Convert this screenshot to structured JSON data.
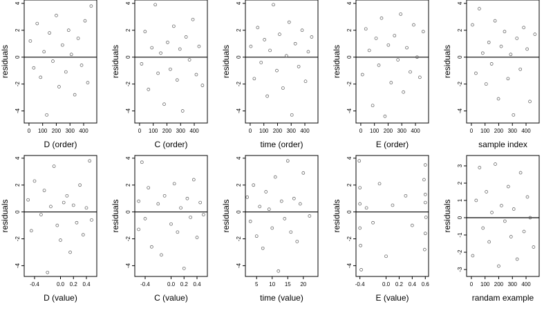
{
  "chart_data": [
    {
      "type": "scatter",
      "x_label": "D (order)",
      "y_label": "residuals",
      "color": "#555555",
      "reference_line": 0,
      "xlim": [
        -35,
        496
      ],
      "ylim": [
        -4.9,
        4.25
      ],
      "xticks": [
        0,
        100,
        200,
        300,
        400
      ],
      "yticks": [
        -4,
        -2,
        0,
        2,
        4
      ],
      "x": [
        10,
        35,
        60,
        85,
        110,
        130,
        150,
        175,
        200,
        220,
        245,
        270,
        290,
        310,
        335,
        360,
        385,
        410,
        430,
        455
      ],
      "y": [
        1.2,
        -0.8,
        2.5,
        -1.5,
        0.4,
        -4.3,
        1.8,
        -0.3,
        3.1,
        -2.2,
        0.9,
        -1.1,
        2.0,
        0.2,
        -2.8,
        1.4,
        -0.6,
        2.7,
        -1.9,
        3.8
      ]
    },
    {
      "type": "scatter",
      "x_label": "C (order)",
      "y_label": "residuals",
      "color": "#555555",
      "reference_line": 0,
      "xlim": [
        -35,
        496
      ],
      "ylim": [
        -4.9,
        4.25
      ],
      "xticks": [
        0,
        100,
        200,
        300,
        400
      ],
      "yticks": [
        -4,
        -2,
        0,
        2,
        4
      ],
      "x": [
        15,
        40,
        65,
        90,
        115,
        135,
        155,
        180,
        205,
        225,
        250,
        275,
        295,
        315,
        340,
        365,
        390,
        415,
        435,
        460
      ],
      "y": [
        -0.5,
        1.9,
        -2.4,
        0.7,
        3.9,
        -1.2,
        0.3,
        -3.5,
        1.1,
        -0.9,
        2.3,
        -1.7,
        0.6,
        -4.0,
        1.5,
        -0.2,
        2.8,
        -1.3,
        0.8,
        -2.1
      ]
    },
    {
      "type": "scatter",
      "x_label": "time (order)",
      "y_label": "residuals",
      "color": "#555555",
      "reference_line": 0,
      "xlim": [
        -35,
        496
      ],
      "ylim": [
        -4.9,
        4.25
      ],
      "xticks": [
        0,
        100,
        200,
        300,
        400
      ],
      "yticks": [
        -4,
        -2,
        0,
        2,
        4
      ],
      "x": [
        5,
        30,
        55,
        80,
        105,
        125,
        145,
        170,
        195,
        215,
        240,
        265,
        285,
        305,
        330,
        355,
        380,
        405,
        425,
        450
      ],
      "y": [
        0.8,
        -1.6,
        2.2,
        -0.4,
        1.3,
        -2.9,
        0.5,
        3.9,
        -1.0,
        1.7,
        -2.3,
        0.1,
        2.6,
        -4.3,
        1.0,
        -0.7,
        2.0,
        -1.8,
        0.4,
        1.5
      ]
    },
    {
      "type": "scatter",
      "x_label": "E (order)",
      "y_label": "residuals",
      "color": "#555555",
      "reference_line": 0,
      "xlim": [
        -35,
        496
      ],
      "ylim": [
        -4.9,
        4.25
      ],
      "xticks": [
        0,
        100,
        200,
        300,
        400
      ],
      "yticks": [
        -4,
        -2,
        0,
        2,
        4
      ],
      "x": [
        12,
        37,
        62,
        87,
        112,
        132,
        152,
        177,
        202,
        222,
        247,
        272,
        292,
        312,
        337,
        362,
        387,
        412,
        432,
        457
      ],
      "y": [
        -1.3,
        2.1,
        0.5,
        -3.6,
        1.4,
        -0.6,
        2.9,
        -4.4,
        0.9,
        -1.9,
        1.6,
        -0.2,
        3.2,
        -2.6,
        0.7,
        -1.1,
        2.4,
        0.0,
        -1.5,
        1.9
      ]
    },
    {
      "type": "scatter",
      "x_label": "sample index",
      "y_label": "residuals",
      "color": "#555555",
      "reference_line": 0,
      "xlim": [
        -35,
        496
      ],
      "ylim": [
        -4.9,
        4.25
      ],
      "xticks": [
        0,
        100,
        200,
        300,
        400
      ],
      "yticks": [
        -4,
        -2,
        0,
        2,
        4
      ],
      "x": [
        8,
        33,
        58,
        83,
        108,
        128,
        148,
        173,
        198,
        218,
        243,
        268,
        288,
        308,
        333,
        358,
        383,
        408,
        428,
        465
      ],
      "y": [
        2.4,
        -1.2,
        3.6,
        0.3,
        -2.0,
        1.1,
        -0.5,
        2.7,
        -3.1,
        0.8,
        1.9,
        -1.6,
        0.2,
        -4.3,
        1.4,
        -0.9,
        2.2,
        0.6,
        -3.3,
        1.7
      ]
    },
    {
      "type": "scatter",
      "x_label": "D (value)",
      "y_label": "residuals",
      "color": "#555555",
      "reference_line": 0,
      "xlim": [
        -0.56,
        0.56
      ],
      "ylim": [
        -4.8,
        4.2
      ],
      "xticks": [
        -0.4,
        {
          "value": 0,
          "label": "0.0"
        },
        0.2,
        0.4
      ],
      "yticks": [
        -4,
        -2,
        0,
        2,
        4
      ],
      "x": [
        -0.5,
        -0.45,
        -0.4,
        -0.3,
        -0.25,
        -0.2,
        -0.15,
        -0.1,
        -0.05,
        0,
        0.05,
        0.1,
        0.15,
        0.2,
        0.25,
        0.3,
        0.35,
        0.4,
        0.45,
        0.48
      ],
      "y": [
        0.9,
        -1.4,
        2.3,
        -0.2,
        1.6,
        -4.5,
        0.4,
        3.4,
        -1.0,
        -2.1,
        0.7,
        1.2,
        -3.0,
        0.5,
        -0.8,
        2.0,
        -1.7,
        0.3,
        3.8,
        -0.6
      ]
    },
    {
      "type": "scatter",
      "x_label": "C (value)",
      "y_label": "residuals",
      "color": "#555555",
      "reference_line": 0,
      "xlim": [
        -0.56,
        0.56
      ],
      "ylim": [
        -4.8,
        4.2
      ],
      "xticks": [
        -0.4,
        {
          "value": 0,
          "label": "0.0"
        },
        0.2,
        0.4
      ],
      "yticks": [
        -4,
        -2,
        0,
        2,
        4
      ],
      "x": [
        -0.5,
        -0.5,
        -0.45,
        -0.4,
        -0.35,
        -0.3,
        -0.2,
        -0.15,
        -0.1,
        0,
        0.05,
        0.1,
        0.15,
        0.2,
        0.25,
        0.3,
        0.35,
        0.4,
        0.45,
        0.5
      ],
      "y": [
        0.8,
        -1.3,
        3.7,
        -0.5,
        1.8,
        -2.6,
        0.6,
        -3.2,
        1.2,
        -0.9,
        2.1,
        -1.5,
        0.3,
        -4.2,
        1.0,
        -0.4,
        2.4,
        -1.9,
        0.7,
        -0.2
      ]
    },
    {
      "type": "scatter",
      "x_label": "time (value)",
      "y_label": "residuals",
      "color": "#555555",
      "reference_line": 0,
      "xlim": [
        1.4,
        24.7
      ],
      "ylim": [
        -4.8,
        4.2
      ],
      "xticks": [
        5,
        10,
        15,
        20
      ],
      "yticks": [
        -4,
        -2,
        0,
        2,
        4
      ],
      "x": [
        2,
        3,
        4,
        5,
        6,
        7,
        8,
        9,
        10,
        11,
        12,
        13,
        14,
        15,
        16,
        17,
        18,
        19,
        20,
        22
      ],
      "y": [
        1.1,
        -0.7,
        2.0,
        -1.8,
        0.4,
        -2.7,
        1.5,
        0.2,
        -1.2,
        2.6,
        -4.4,
        0.8,
        -0.5,
        3.8,
        -1.5,
        1.0,
        -2.2,
        0.6,
        2.9,
        -0.3
      ]
    },
    {
      "type": "scatter",
      "x_label": "E (value)",
      "y_label": "residuals",
      "color": "#555555",
      "reference_line": 0,
      "xlim": [
        -0.46,
        0.65
      ],
      "ylim": [
        -4.8,
        4.2
      ],
      "xticks": [
        -0.4,
        {
          "value": 0,
          "label": "0.0"
        },
        0.2,
        0.4,
        0.6
      ],
      "yticks": [
        -4,
        -2,
        0,
        2,
        4
      ],
      "x": [
        -0.41,
        -0.4,
        -0.4,
        -0.39,
        -0.4,
        -0.38,
        -0.3,
        -0.2,
        -0.1,
        0.0,
        0.1,
        0.3,
        0.4,
        0.58,
        0.6,
        0.6,
        0.59,
        0.6,
        0.61,
        0.6
      ],
      "y": [
        3.8,
        -1.2,
        0.6,
        -2.5,
        1.8,
        -4.3,
        0.3,
        -0.8,
        2.1,
        -3.3,
        0.5,
        1.2,
        -1.0,
        2.4,
        -1.6,
        0.7,
        -2.8,
        3.5,
        -0.4,
        1.3
      ]
    },
    {
      "type": "scatter",
      "x_label": "randam example",
      "y_label": "residuals",
      "color": "#555555",
      "reference_line": 0,
      "xlim": [
        -35,
        496
      ],
      "ylim": [
        -3.4,
        3.6
      ],
      "xticks": [
        0,
        100,
        200,
        300,
        400
      ],
      "yticks": [
        -3,
        -2,
        -1,
        0,
        1,
        2,
        3
      ],
      "x": [
        10,
        35,
        60,
        85,
        110,
        130,
        150,
        175,
        200,
        220,
        245,
        270,
        290,
        310,
        335,
        360,
        385,
        410,
        430,
        455
      ],
      "y": [
        -2.2,
        1.0,
        2.9,
        -0.6,
        1.5,
        -1.4,
        0.3,
        3.1,
        -2.8,
        0.7,
        -0.2,
        1.8,
        -1.1,
        0.5,
        -2.4,
        2.6,
        -0.8,
        1.2,
        0.0,
        -1.7
      ]
    }
  ]
}
